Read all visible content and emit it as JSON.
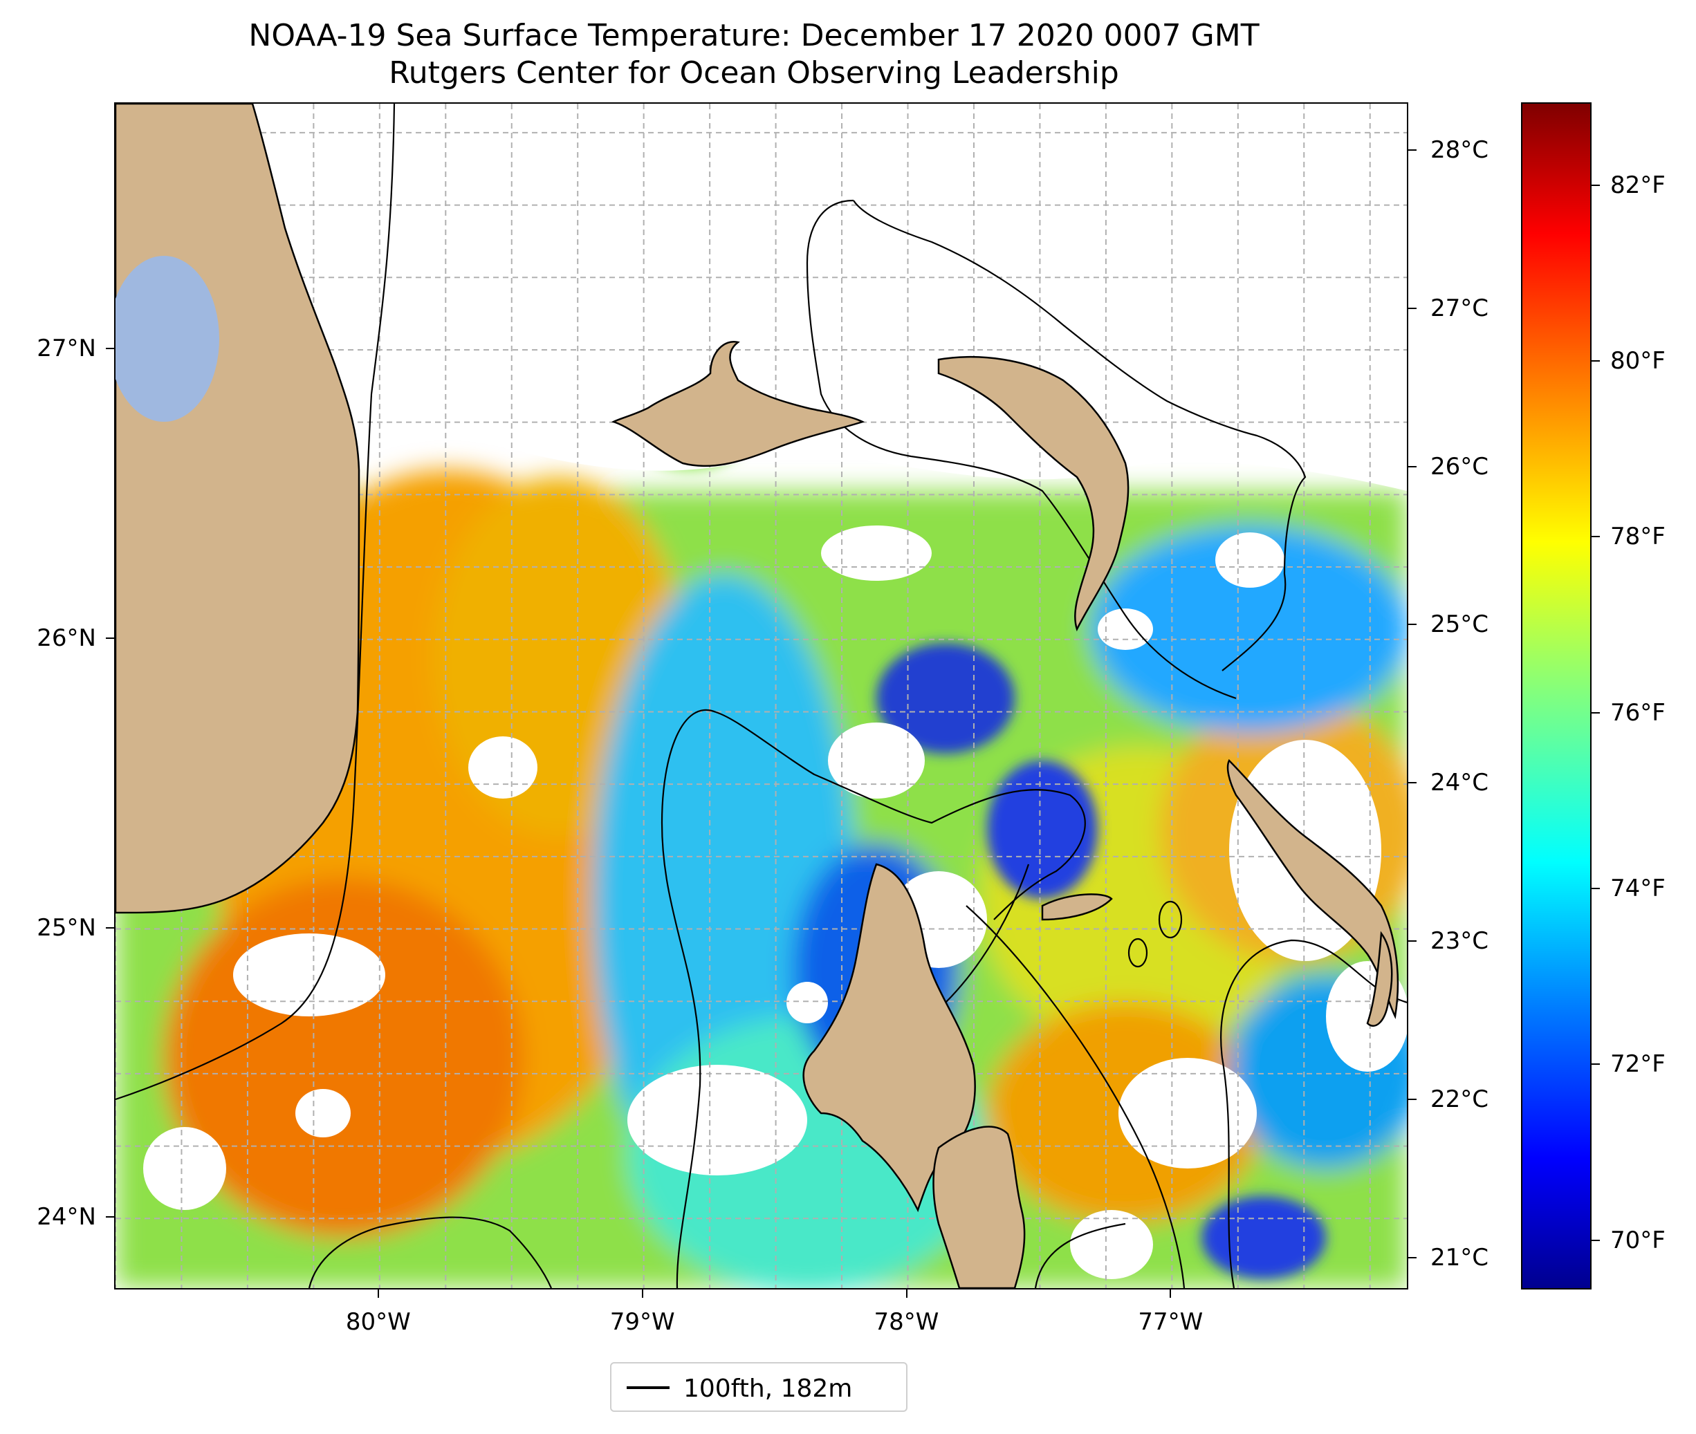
{
  "title": {
    "line1": "NOAA-19 Sea Surface Temperature: December 17 2020 0007 GMT",
    "line2": "Rutgers Center for Ocean Observing Leadership"
  },
  "map": {
    "lon_range": [
      -81.0,
      -76.1
    ],
    "lat_range": [
      23.75,
      27.85
    ],
    "lat_ticks": [
      {
        "value": 27,
        "label": "27°N"
      },
      {
        "value": 26,
        "label": "26°N"
      },
      {
        "value": 25,
        "label": "25°N"
      },
      {
        "value": 24,
        "label": "24°N"
      }
    ],
    "lon_ticks": [
      {
        "value": -80,
        "label": "80°W"
      },
      {
        "value": -79,
        "label": "79°W"
      },
      {
        "value": -78,
        "label": "78°W"
      },
      {
        "value": -77,
        "label": "77°W"
      }
    ],
    "grid": "dashed gray",
    "colors": {
      "land": "#d2b48c",
      "lake": "#9fb8e0",
      "no_data": "#ffffff",
      "contour": "#000000"
    }
  },
  "colorbar": {
    "colormap": "jet",
    "celsius_range": [
      20.8,
      28.3
    ],
    "celsius_ticks": [
      {
        "value": 28,
        "label": "28°C"
      },
      {
        "value": 27,
        "label": "27°C"
      },
      {
        "value": 26,
        "label": "26°C"
      },
      {
        "value": 25,
        "label": "25°C"
      },
      {
        "value": 24,
        "label": "24°C"
      },
      {
        "value": 23,
        "label": "23°C"
      },
      {
        "value": 22,
        "label": "22°C"
      },
      {
        "value": 21,
        "label": "21°C"
      }
    ],
    "fahrenheit_ticks": [
      {
        "value": 82,
        "label": "82°F"
      },
      {
        "value": 80,
        "label": "80°F"
      },
      {
        "value": 78,
        "label": "78°F"
      },
      {
        "value": 76,
        "label": "76°F"
      },
      {
        "value": 74,
        "label": "74°F"
      },
      {
        "value": 72,
        "label": "72°F"
      },
      {
        "value": 70,
        "label": "70°F"
      }
    ]
  },
  "legend": {
    "entry": "100fth, 182m"
  }
}
